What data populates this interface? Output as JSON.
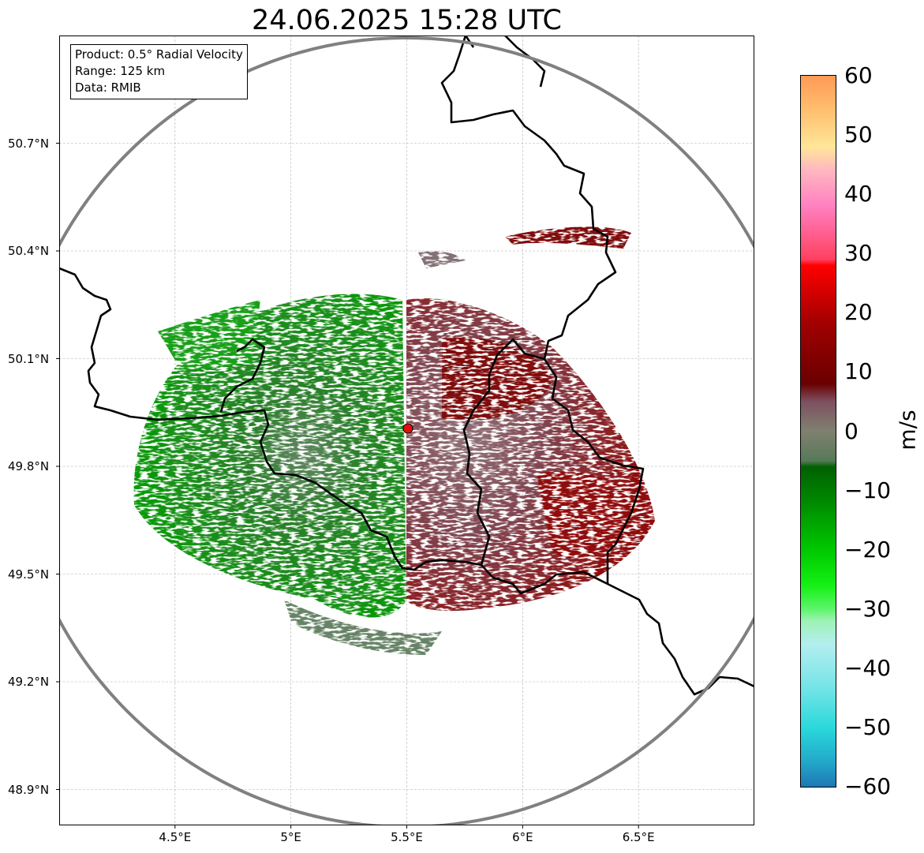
{
  "title": "24.06.2025 15:28 UTC",
  "info_box": {
    "product": "Product: 0.5° Radial Velocity",
    "range": "Range: 125 km",
    "source": "Data: RMIB"
  },
  "map": {
    "lon_range": [
      4.0,
      7.0
    ],
    "lat_range": [
      48.8,
      51.0
    ],
    "radar_site": {
      "lon": 5.5,
      "lat": 49.915
    },
    "range_ring_km": 125,
    "gridlines": true,
    "lon_ticks": [
      4.5,
      5.0,
      5.5,
      6.0,
      6.5
    ],
    "lon_tick_labels": [
      "4.5°E",
      "5°E",
      "5.5°E",
      "6°E",
      "6.5°E"
    ],
    "lat_ticks": [
      50.7,
      50.4,
      50.1,
      49.8,
      49.5,
      49.2,
      48.9
    ],
    "lat_tick_labels": [
      "50.7°N",
      "50.4°N",
      "50.1°N",
      "49.8°N",
      "49.5°N",
      "49.2°N",
      "48.9°N"
    ],
    "colors": {
      "border": "#000000",
      "range_ring": "#808080",
      "grid": "#b0b0b0",
      "radar_marker": "#e01010"
    }
  },
  "colorbar": {
    "label": "m/s",
    "min": -60,
    "max": 60,
    "ticks": [
      60,
      50,
      40,
      30,
      20,
      10,
      0,
      -10,
      -20,
      -30,
      -40,
      -50,
      -60
    ],
    "tick_labels": [
      "60",
      "50",
      "40",
      "30",
      "20",
      "10",
      "0",
      "−10",
      "−20",
      "−30",
      "−40",
      "−50",
      "−60"
    ],
    "stops": [
      {
        "v": -60,
        "c": "#1f77b4"
      },
      {
        "v": -56,
        "c": "#22a6c9"
      },
      {
        "v": -50,
        "c": "#2ad9dc"
      },
      {
        "v": -44,
        "c": "#6ee3e6"
      },
      {
        "v": -36,
        "c": "#b3eef0"
      },
      {
        "v": -32,
        "c": "#9ef2b5"
      },
      {
        "v": -30,
        "c": "#5df56a"
      },
      {
        "v": -26,
        "c": "#14f014"
      },
      {
        "v": -20,
        "c": "#00c800"
      },
      {
        "v": -12,
        "c": "#008a00"
      },
      {
        "v": -6,
        "c": "#006000"
      },
      {
        "v": -5,
        "c": "#567a58"
      },
      {
        "v": 0,
        "c": "#808070"
      },
      {
        "v": 5,
        "c": "#7d5060"
      },
      {
        "v": 8,
        "c": "#6a0000"
      },
      {
        "v": 18,
        "c": "#a00000"
      },
      {
        "v": 28,
        "c": "#ff0000"
      },
      {
        "v": 29,
        "c": "#ff4060"
      },
      {
        "v": 38,
        "c": "#ff80c0"
      },
      {
        "v": 44,
        "c": "#ffb6c1"
      },
      {
        "v": 48,
        "c": "#ffe699"
      },
      {
        "v": 54,
        "c": "#ffc070"
      },
      {
        "v": 60,
        "c": "#ff9955"
      }
    ]
  }
}
